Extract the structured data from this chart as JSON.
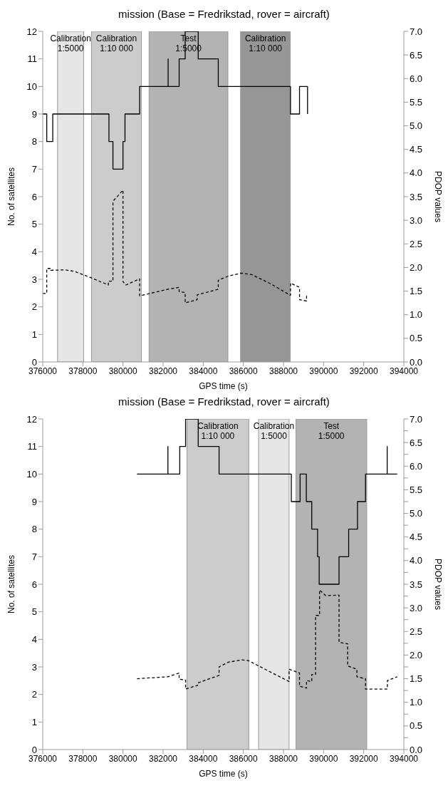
{
  "chart_data": [
    {
      "type": "line",
      "title": "mission (Base = Fredrikstad, rover = aircraft)",
      "xlabel": "GPS time (s)",
      "ylabel": "No. of satellites",
      "y2label": "PDOP values",
      "xlim": [
        376000,
        394000
      ],
      "xticks": [
        376000,
        378000,
        380000,
        382000,
        384000,
        386000,
        388000,
        390000,
        392000,
        394000
      ],
      "ylim": [
        0,
        12
      ],
      "yticks": [
        0,
        1,
        2,
        3,
        4,
        5,
        6,
        7,
        8,
        9,
        10,
        11,
        12
      ],
      "y2lim": [
        0,
        7
      ],
      "y2ticks": [
        {
          "value": 0,
          "label": "0.0"
        },
        {
          "value": 0.5,
          "label": "0.5"
        },
        {
          "value": 1,
          "label": "1.0"
        },
        {
          "value": 1.5,
          "label": "1.5"
        },
        {
          "value": 2,
          "label": "2.0"
        },
        {
          "value": 2.5,
          "label": "2.5"
        },
        {
          "value": 3,
          "label": "3.0"
        },
        {
          "value": 3.5,
          "label": "3.5"
        },
        {
          "value": 4,
          "label": "4.0"
        },
        {
          "value": 4.5,
          "label": "4.5"
        },
        {
          "value": 5,
          "label": "5.0"
        },
        {
          "value": 5.5,
          "label": "5.5"
        },
        {
          "value": 6,
          "label": "6.0"
        },
        {
          "value": 6.5,
          "label": "6.5"
        },
        {
          "value": 7,
          "label": "7.0"
        }
      ],
      "bands": [
        {
          "axis": "x",
          "from": 376740,
          "to": 378040,
          "label": "Calibration\n1:5000",
          "color": "#e6e6e6"
        },
        {
          "axis": "x",
          "from": 378430,
          "to": 380920,
          "label": "Calibration\n1:10 000",
          "color": "#cccccc"
        },
        {
          "axis": "x",
          "from": 381300,
          "to": 385230,
          "label": "Test\n1:5000",
          "color": "#b3b3b3"
        },
        {
          "axis": "x",
          "from": 385860,
          "to": 388340,
          "label": "Calibration\n1:10 000",
          "color": "#969696"
        }
      ],
      "series": [
        {
          "color": "#000000",
          "line_style": "solid",
          "x": [
            376000,
            376200,
            376200,
            376500,
            376500,
            379300,
            379300,
            379500,
            379500,
            380000,
            380000,
            380100,
            380100,
            380830,
            380830,
            382250,
            382250,
            382250,
            382800,
            382800,
            383100,
            383100,
            383750,
            383750,
            384750,
            384750,
            388350,
            388350,
            388800,
            388800,
            389200,
            389200
          ],
          "values": [
            9,
            9,
            8,
            8,
            9,
            9,
            8,
            8,
            7,
            7,
            8,
            8,
            9,
            9,
            10,
            10,
            11,
            10,
            10,
            11,
            11,
            12,
            12,
            11,
            11,
            10,
            10,
            9,
            9,
            10,
            10,
            9
          ]
        },
        {
          "color": "#000000",
          "line_style": "dashed",
          "axis": "y2",
          "x": [
            376000,
            376200,
            376200,
            376400,
            376400,
            377100,
            377560,
            378370,
            379270,
            379270,
            379500,
            379500,
            380000,
            380000,
            380150,
            380830,
            380830,
            382250,
            382800,
            382800,
            383100,
            383100,
            383700,
            383700,
            384750,
            384750,
            385260,
            385900,
            386420,
            387340,
            388350,
            388350,
            388800,
            388800,
            389150,
            389150,
            389200
          ],
          "values": [
            1.45,
            1.45,
            1.98,
            1.98,
            1.94,
            1.95,
            1.92,
            1.79,
            1.63,
            1.71,
            1.71,
            3.4,
            3.64,
            1.7,
            1.63,
            1.76,
            1.4,
            1.54,
            1.58,
            1.49,
            1.47,
            1.25,
            1.32,
            1.42,
            1.54,
            1.73,
            1.82,
            1.88,
            1.85,
            1.66,
            1.41,
            1.67,
            1.58,
            1.32,
            1.29,
            1.42,
            1.42
          ]
        }
      ]
    },
    {
      "type": "line",
      "title": "mission (Base = Fredrikstad, rover = aircraft)",
      "xlabel": "GPS time (s)",
      "ylabel": "No. of satellites",
      "y2label": "PDOP values",
      "xlim": [
        376000,
        394000
      ],
      "xticks": [
        376000,
        378000,
        380000,
        382000,
        384000,
        386000,
        388000,
        390000,
        392000,
        394000
      ],
      "ylim": [
        0,
        12
      ],
      "yticks": [
        0,
        1,
        2,
        3,
        4,
        5,
        6,
        7,
        8,
        9,
        10,
        11,
        12
      ],
      "y2lim": [
        0,
        7
      ],
      "y2ticks": [
        {
          "value": 0,
          "label": "0.0"
        },
        {
          "value": 0.25,
          "label": null
        },
        {
          "value": 0.5,
          "label": "0.5"
        },
        {
          "value": 0.75,
          "label": null
        },
        {
          "value": 1,
          "label": "1.0"
        },
        {
          "value": 1.25,
          "label": null
        },
        {
          "value": 1.5,
          "label": "1.5"
        },
        {
          "value": 1.75,
          "label": null
        },
        {
          "value": 2,
          "label": "2.0"
        },
        {
          "value": 2.25,
          "label": null
        },
        {
          "value": 2.5,
          "label": "2.5"
        },
        {
          "value": 2.75,
          "label": null
        },
        {
          "value": 3,
          "label": "3.0"
        },
        {
          "value": 3.25,
          "label": null
        },
        {
          "value": 3.5,
          "label": "3.5"
        },
        {
          "value": 3.75,
          "label": null
        },
        {
          "value": 4,
          "label": "4.0"
        },
        {
          "value": 4.25,
          "label": null
        },
        {
          "value": 4.5,
          "label": "4.5"
        },
        {
          "value": 4.75,
          "label": null
        },
        {
          "value": 5,
          "label": "5.0"
        },
        {
          "value": 5.25,
          "label": null
        },
        {
          "value": 5.5,
          "label": "5.5"
        },
        {
          "value": 5.75,
          "label": null
        },
        {
          "value": 6,
          "label": "6.0"
        },
        {
          "value": 6.25,
          "label": null
        },
        {
          "value": 6.5,
          "label": "6.5"
        },
        {
          "value": 6.75,
          "label": null
        },
        {
          "value": 7,
          "label": "7.0"
        }
      ],
      "bands": [
        {
          "axis": "x",
          "from": 383190,
          "to": 386270,
          "label": "Calibration\n1:10 000",
          "color": "#cccccc"
        },
        {
          "axis": "x",
          "from": 386760,
          "to": 388280,
          "label": "Calibration\n1:5000",
          "color": "#e6e6e6"
        },
        {
          "axis": "x",
          "from": 388620,
          "to": 392150,
          "label": "Test\n1:5000",
          "color": "#b3b3b3"
        }
      ],
      "series": [
        {
          "color": "#000000",
          "line_style": "solid",
          "x": [
            380700,
            382240,
            382240,
            382240,
            382830,
            382830,
            383120,
            383120,
            383750,
            383750,
            384790,
            384790,
            388390,
            388390,
            388830,
            388830,
            389140,
            389140,
            389410,
            389410,
            389700,
            389700,
            389780,
            389780,
            390770,
            390770,
            391250,
            391250,
            391690,
            391690,
            392090,
            392090,
            393170,
            393170,
            393170,
            393670
          ],
          "values": [
            10,
            10,
            11,
            10,
            10,
            11,
            11,
            12,
            12,
            11,
            11,
            10,
            10,
            9,
            9,
            10,
            10,
            9,
            9,
            8,
            8,
            7,
            7,
            6,
            6,
            7,
            7,
            8,
            8,
            9,
            9,
            10,
            10,
            11,
            10,
            10
          ]
        },
        {
          "color": "#000000",
          "line_style": "dashed",
          "axis": "y2",
          "x": [
            380700,
            382240,
            382800,
            382800,
            383120,
            383120,
            383720,
            383720,
            384790,
            384790,
            385250,
            385940,
            386270,
            387310,
            388280,
            388280,
            388800,
            388800,
            389150,
            389150,
            389410,
            389410,
            389600,
            389600,
            389800,
            389800,
            390100,
            390770,
            390770,
            391200,
            391200,
            391660,
            391660,
            392090,
            392090,
            393180,
            393180,
            393670
          ],
          "values": [
            1.5,
            1.54,
            1.62,
            1.49,
            1.47,
            1.28,
            1.36,
            1.41,
            1.57,
            1.75,
            1.85,
            1.9,
            1.88,
            1.65,
            1.44,
            1.7,
            1.62,
            1.34,
            1.3,
            1.46,
            1.44,
            1.59,
            1.59,
            2.84,
            2.84,
            3.38,
            3.26,
            3.27,
            2.27,
            2.24,
            1.77,
            1.7,
            1.54,
            1.5,
            1.28,
            1.28,
            1.46,
            1.54
          ]
        }
      ]
    }
  ]
}
